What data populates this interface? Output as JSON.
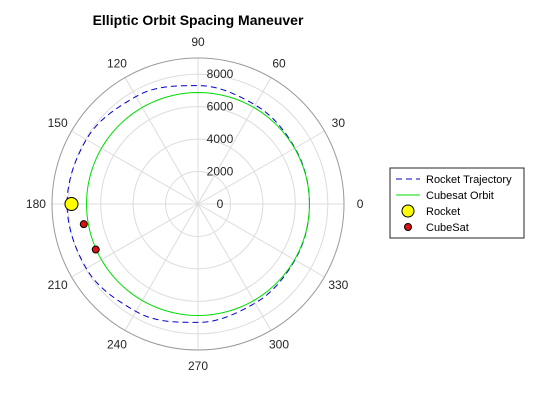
{
  "chart_data": {
    "type": "polar",
    "title": "Elliptic Orbit Spacing Maneuver",
    "angle_unit": "degrees",
    "r_lim": [
      0,
      9000
    ],
    "r_ticks": [
      0,
      2000,
      4000,
      6000,
      8000
    ],
    "r_tick_labels": [
      "0",
      "2000",
      "4000",
      "6000",
      "8000"
    ],
    "theta_ticks": [
      0,
      30,
      60,
      90,
      120,
      150,
      180,
      210,
      240,
      270,
      300,
      330
    ],
    "theta_tick_labels": [
      "0",
      "30",
      "60",
      "90",
      "120",
      "150",
      "180",
      "210",
      "240",
      "270",
      "300",
      "330"
    ],
    "grid": true,
    "legend_position": "right",
    "series": [
      {
        "name": "Rocket Trajectory",
        "style": "dashed-line",
        "color": "#0000cc",
        "theta": [
          0,
          30,
          60,
          90,
          120,
          150,
          180,
          210,
          240,
          270,
          300,
          330,
          360
        ],
        "r": [
          6871,
          6900,
          7050,
          7300,
          7650,
          7950,
          8071,
          7950,
          7650,
          7300,
          7050,
          6900,
          6871
        ]
      },
      {
        "name": "Cubesat Orbit",
        "style": "solid-line",
        "color": "#00dd00",
        "theta": [
          0,
          30,
          60,
          90,
          120,
          150,
          180,
          210,
          240,
          270,
          300,
          330,
          360
        ],
        "r": [
          6871,
          6871,
          6871,
          6871,
          6871,
          6871,
          6871,
          6871,
          6871,
          6871,
          6871,
          6871,
          6871
        ]
      },
      {
        "name": "Rocket",
        "style": "marker",
        "color": "#ffff00",
        "points": [
          {
            "theta": 180,
            "r": 7800
          }
        ]
      },
      {
        "name": "CubeSat",
        "style": "marker",
        "color": "#dd1111",
        "points": [
          {
            "theta": 190,
            "r": 7150
          },
          {
            "theta": 204,
            "r": 6900
          }
        ]
      }
    ]
  }
}
